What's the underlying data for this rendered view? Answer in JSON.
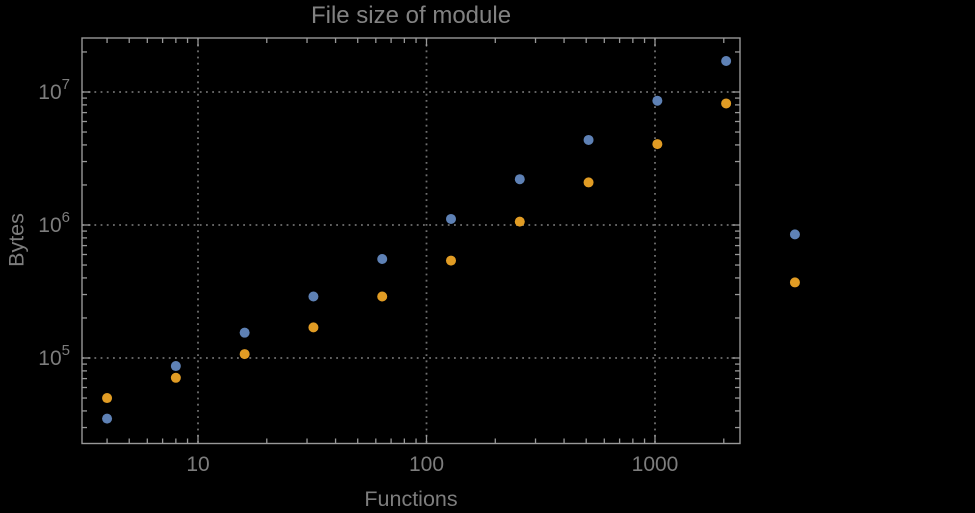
{
  "chart_data": {
    "type": "scatter",
    "scale": "log-log",
    "title": "File size of module",
    "xlabel": "Functions",
    "ylabel": "Bytes",
    "x": [
      4,
      8,
      16,
      32,
      64,
      128,
      256,
      512,
      1024,
      2048,
      4096
    ],
    "series": [
      {
        "name": "blue",
        "color": "#5E81B5",
        "values": [
          35000,
          87000,
          155000,
          290000,
          555000,
          1110000,
          2210000,
          4360000,
          8600000,
          17100000,
          850000
        ]
      },
      {
        "name": "orange",
        "color": "#E19C24",
        "values": [
          50000,
          71000,
          107000,
          170000,
          290000,
          540000,
          1060000,
          2090000,
          4060000,
          8200000,
          370000
        ]
      }
    ],
    "x_ticks": [
      {
        "value": 10,
        "label": "10"
      },
      {
        "value": 100,
        "label": "100"
      },
      {
        "value": 1000,
        "label": "1000"
      }
    ],
    "y_ticks": [
      {
        "value": 100000,
        "base": "10",
        "exp": "5"
      },
      {
        "value": 1000000,
        "base": "10",
        "exp": "6"
      },
      {
        "value": 10000000,
        "base": "10",
        "exp": "7"
      }
    ],
    "x_gridlines": [
      10,
      100,
      1000
    ],
    "y_gridlines": [
      100000,
      1000000,
      10000000
    ],
    "x_range": [
      3.1,
      2355
    ],
    "y_range": [
      22700,
      25500000
    ],
    "grid": "dotted",
    "legend": "none",
    "frame": true
  },
  "colors": {
    "background": "#000000",
    "frame": "#989898",
    "grid": "#6f6f6f",
    "text": "#7d7d7d",
    "title": "#828282",
    "point_blue": "#5E81B5",
    "point_orange": "#E19C24"
  }
}
